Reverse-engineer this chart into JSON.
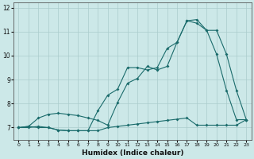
{
  "xlabel": "Humidex (Indice chaleur)",
  "xlim": [
    -0.5,
    23.5
  ],
  "ylim": [
    6.5,
    12.2
  ],
  "yticks": [
    7,
    8,
    9,
    10,
    11,
    12
  ],
  "xticks": [
    0,
    1,
    2,
    3,
    4,
    5,
    6,
    7,
    8,
    9,
    10,
    11,
    12,
    13,
    14,
    15,
    16,
    17,
    18,
    19,
    20,
    21,
    22,
    23
  ],
  "bg_color": "#cce8e8",
  "line_color": "#1a6b6b",
  "grid_color": "#aacccc",
  "line1_x": [
    0,
    1,
    2,
    3,
    4,
    5,
    6,
    7,
    8,
    9,
    10,
    11,
    12,
    13,
    14,
    15,
    16,
    17,
    18,
    19,
    20,
    21,
    22,
    23
  ],
  "line1_y": [
    7.0,
    7.0,
    7.05,
    7.0,
    6.9,
    6.87,
    6.87,
    6.87,
    6.87,
    7.0,
    7.05,
    7.1,
    7.15,
    7.2,
    7.25,
    7.3,
    7.35,
    7.4,
    7.1,
    7.1,
    7.1,
    7.1,
    7.1,
    7.33
  ],
  "line2_x": [
    0,
    1,
    2,
    3,
    4,
    5,
    6,
    7,
    8,
    9,
    10,
    11,
    12,
    13,
    14,
    15,
    16,
    17,
    18,
    19,
    20,
    21,
    22,
    23
  ],
  "line2_y": [
    7.0,
    7.05,
    7.0,
    7.0,
    6.9,
    6.87,
    6.87,
    6.87,
    7.7,
    8.35,
    8.6,
    9.5,
    9.5,
    9.4,
    9.5,
    10.3,
    10.55,
    11.45,
    11.5,
    11.05,
    10.05,
    8.55,
    7.33,
    7.33
  ],
  "line3_x": [
    0,
    1,
    2,
    3,
    4,
    5,
    6,
    7,
    8,
    9,
    10,
    11,
    12,
    13,
    14,
    15,
    16,
    17,
    18,
    19,
    20,
    21,
    22,
    23
  ],
  "line3_y": [
    7.0,
    7.05,
    7.4,
    7.55,
    7.6,
    7.55,
    7.5,
    7.4,
    7.3,
    7.1,
    8.05,
    8.85,
    9.05,
    9.55,
    9.4,
    9.55,
    10.55,
    11.45,
    11.35,
    11.05,
    11.05,
    10.05,
    8.55,
    7.33
  ]
}
